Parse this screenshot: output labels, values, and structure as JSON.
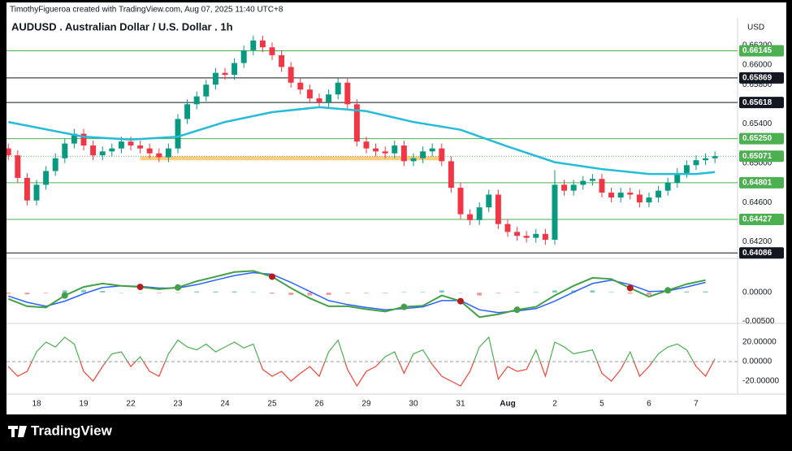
{
  "header": {
    "credit": "TimothyFigueroa created with TradingView.com, Aug 07, 2025 11:40 UTC+8",
    "title": "AUDUSD . Australian Dollar / U.S. Dollar . 1h",
    "currency": "USD"
  },
  "footer": {
    "logo": "TradingView"
  },
  "chart_data": [
    {
      "type": "candlestick",
      "x": [
        -3,
        -2,
        -1,
        0,
        1,
        2,
        3,
        4,
        5,
        6,
        7,
        8,
        9,
        10,
        11,
        12,
        13,
        14,
        15,
        16,
        17,
        18,
        19,
        20,
        21,
        22,
        23,
        24,
        25,
        26,
        27,
        28,
        29,
        30,
        31,
        32,
        33,
        34,
        35,
        36,
        37,
        38,
        39,
        40,
        41,
        42,
        43,
        44,
        45,
        46,
        47,
        48,
        49,
        50,
        51,
        52,
        53,
        54,
        55,
        56,
        57,
        58,
        59,
        60,
        61,
        62,
        63,
        64,
        65,
        66,
        67,
        68,
        69,
        70,
        71,
        72
      ],
      "open": [
        0.6515,
        0.6508,
        0.6485,
        0.6462,
        0.6478,
        0.6492,
        0.6505,
        0.652,
        0.653,
        0.6518,
        0.6508,
        0.6512,
        0.6515,
        0.6522,
        0.6518,
        0.6515,
        0.651,
        0.6506,
        0.6515,
        0.6545,
        0.656,
        0.6568,
        0.658,
        0.6592,
        0.659,
        0.6602,
        0.6615,
        0.6625,
        0.6618,
        0.661,
        0.6598,
        0.6582,
        0.6575,
        0.6566,
        0.6562,
        0.657,
        0.6582,
        0.656,
        0.6522,
        0.6515,
        0.6512,
        0.651,
        0.6518,
        0.6502,
        0.6505,
        0.6512,
        0.6515,
        0.6502,
        0.6475,
        0.6448,
        0.6442,
        0.6455,
        0.6468,
        0.6438,
        0.643,
        0.6426,
        0.6424,
        0.6428,
        0.6422,
        0.6478,
        0.6472,
        0.6478,
        0.6482,
        0.6484,
        0.647,
        0.6465,
        0.647,
        0.6468,
        0.646,
        0.6465,
        0.6472,
        0.648,
        0.649,
        0.6498,
        0.6503,
        0.6505
      ],
      "high": [
        0.652,
        0.6513,
        0.649,
        0.6483,
        0.6497,
        0.651,
        0.6525,
        0.6535,
        0.6535,
        0.6523,
        0.6517,
        0.652,
        0.6527,
        0.6527,
        0.6523,
        0.652,
        0.6515,
        0.652,
        0.655,
        0.6565,
        0.6573,
        0.6585,
        0.6597,
        0.6597,
        0.6607,
        0.662,
        0.663,
        0.663,
        0.6623,
        0.6615,
        0.6603,
        0.6587,
        0.658,
        0.6571,
        0.6575,
        0.6587,
        0.6587,
        0.6565,
        0.6527,
        0.652,
        0.6517,
        0.6523,
        0.6523,
        0.651,
        0.6517,
        0.652,
        0.652,
        0.6507,
        0.648,
        0.6453,
        0.646,
        0.6473,
        0.6473,
        0.6443,
        0.6435,
        0.6431,
        0.6433,
        0.6433,
        0.6493,
        0.6483,
        0.6483,
        0.6487,
        0.6489,
        0.6489,
        0.6475,
        0.6475,
        0.6475,
        0.6473,
        0.647,
        0.6477,
        0.6485,
        0.6495,
        0.6503,
        0.6508,
        0.651,
        0.6512
      ],
      "low": [
        0.6503,
        0.648,
        0.6457,
        0.6457,
        0.6473,
        0.6487,
        0.65,
        0.6515,
        0.6513,
        0.6503,
        0.6503,
        0.6507,
        0.651,
        0.6513,
        0.651,
        0.6505,
        0.6501,
        0.6501,
        0.651,
        0.654,
        0.6555,
        0.6563,
        0.6575,
        0.6585,
        0.6585,
        0.6597,
        0.661,
        0.6613,
        0.6605,
        0.6593,
        0.6577,
        0.657,
        0.6561,
        0.6557,
        0.6557,
        0.6565,
        0.6555,
        0.6517,
        0.651,
        0.6507,
        0.6505,
        0.6505,
        0.6497,
        0.6497,
        0.65,
        0.6507,
        0.6497,
        0.647,
        0.6443,
        0.6437,
        0.6437,
        0.645,
        0.6433,
        0.6425,
        0.6421,
        0.6419,
        0.6419,
        0.6417,
        0.6417,
        0.6467,
        0.6467,
        0.6473,
        0.6477,
        0.6465,
        0.646,
        0.646,
        0.6463,
        0.6455,
        0.6455,
        0.646,
        0.6467,
        0.6475,
        0.6485,
        0.6493,
        0.6498,
        0.65
      ],
      "close": [
        0.6508,
        0.6485,
        0.6462,
        0.6478,
        0.6492,
        0.6505,
        0.652,
        0.653,
        0.6518,
        0.6508,
        0.6512,
        0.6515,
        0.6522,
        0.6518,
        0.6515,
        0.651,
        0.6506,
        0.6515,
        0.6545,
        0.656,
        0.6568,
        0.658,
        0.6592,
        0.659,
        0.6602,
        0.6615,
        0.6625,
        0.6618,
        0.661,
        0.6598,
        0.6582,
        0.6575,
        0.6566,
        0.6562,
        0.657,
        0.6582,
        0.656,
        0.6522,
        0.6515,
        0.6512,
        0.651,
        0.6518,
        0.6502,
        0.6505,
        0.6512,
        0.6515,
        0.6502,
        0.6475,
        0.6448,
        0.6442,
        0.6455,
        0.6468,
        0.6438,
        0.643,
        0.6426,
        0.6424,
        0.6428,
        0.6422,
        0.6478,
        0.6472,
        0.6478,
        0.6482,
        0.6484,
        0.647,
        0.6465,
        0.647,
        0.6468,
        0.646,
        0.6465,
        0.6472,
        0.648,
        0.649,
        0.6498,
        0.6503,
        0.6505,
        0.65071
      ],
      "up_color": "#089981",
      "down_color": "#f23645",
      "xlim": [
        -3.19,
        74.4
      ],
      "ylim": [
        0.6403,
        0.6648
      ],
      "xticks": [
        {
          "value": 0,
          "label": "18"
        },
        {
          "value": 5,
          "label": "19"
        },
        {
          "value": 10,
          "label": "22"
        },
        {
          "value": 15,
          "label": "23"
        },
        {
          "value": 20,
          "label": "24"
        },
        {
          "value": 25,
          "label": "25"
        },
        {
          "value": 30,
          "label": "26"
        },
        {
          "value": 35,
          "label": "29"
        },
        {
          "value": 40,
          "label": "30"
        },
        {
          "value": 45,
          "label": "31"
        },
        {
          "value": 50,
          "label": "Aug"
        },
        {
          "value": 55,
          "label": "2"
        },
        {
          "value": 60,
          "label": "5"
        },
        {
          "value": 65,
          "label": "6"
        },
        {
          "value": 70,
          "label": "7"
        }
      ],
      "yticks": [
        {
          "value": 0.662,
          "label": "0.66200"
        },
        {
          "value": 0.66,
          "label": "0.66000"
        },
        {
          "value": 0.658,
          "label": "0.65800"
        },
        {
          "value": 0.654,
          "label": "0.65400"
        },
        {
          "value": 0.65,
          "label": "0.65000"
        },
        {
          "value": 0.646,
          "label": "0.64600"
        },
        {
          "value": 0.642,
          "label": "0.64200"
        }
      ],
      "ma": {
        "x": [
          -3,
          5,
          10,
          15,
          20,
          25,
          30,
          35,
          40,
          45,
          50,
          55,
          60,
          65,
          70,
          72
        ],
        "values": [
          0.6542,
          0.6527,
          0.6524,
          0.6527,
          0.6542,
          0.6552,
          0.6557,
          0.6553,
          0.6542,
          0.6534,
          0.6517,
          0.6501,
          0.6494,
          0.6489,
          0.6489,
          0.6491
        ],
        "color": "#26bcd7"
      },
      "levels": [
        {
          "value": 0.66145,
          "label": "0.66145",
          "color": "#4caf50"
        },
        {
          "value": 0.65869,
          "label": "0.65869",
          "color": "#131722"
        },
        {
          "value": 0.65618,
          "label": "0.65618",
          "color": "#131722"
        },
        {
          "value": 0.6525,
          "label": "0.65250",
          "color": "#4caf50"
        },
        {
          "value": 0.65071,
          "label": "0.65071",
          "color": "#4caf50",
          "dashed": true
        },
        {
          "value": 0.64801,
          "label": "0.64801",
          "color": "#4caf50"
        },
        {
          "value": 0.64427,
          "label": "0.64427",
          "color": "#4caf50"
        },
        {
          "value": 0.64086,
          "label": "0.64086",
          "color": "#131722"
        }
      ],
      "zone": {
        "value": 0.6505,
        "x": [
          11,
          43
        ],
        "color": "#ffcc80"
      }
    },
    {
      "type": "macd",
      "x": [
        -3,
        -1,
        1,
        3,
        5,
        7,
        9,
        11,
        13,
        15,
        17,
        19,
        21,
        23,
        25,
        27,
        29,
        31,
        33,
        35,
        37,
        39,
        41,
        43,
        45,
        47,
        49,
        51,
        53,
        55,
        57,
        59,
        61,
        63,
        65,
        67,
        69,
        71
      ],
      "macd": [
        -0.0011,
        -0.0024,
        -0.0026,
        -0.0005,
        0.001,
        0.0016,
        0.0012,
        0.001,
        0.0006,
        0.0009,
        0.002,
        0.0028,
        0.0036,
        0.0038,
        0.0028,
        0.0008,
        -0.001,
        -0.0024,
        -0.0024,
        -0.0029,
        -0.0033,
        -0.0025,
        -0.0023,
        -0.0005,
        -0.0015,
        -0.0043,
        -0.0038,
        -0.003,
        -0.0025,
        -0.0005,
        0.0012,
        0.0026,
        0.0024,
        0.0008,
        -0.0007,
        0.0004,
        0.0015,
        0.0022
      ],
      "signal": [
        -0.0006,
        -0.0017,
        -0.0024,
        -0.0015,
        -0.0002,
        0.0009,
        0.0012,
        0.0011,
        0.0008,
        0.0008,
        0.0014,
        0.0022,
        0.003,
        0.0035,
        0.0032,
        0.0018,
        0.0002,
        -0.0014,
        -0.0021,
        -0.0026,
        -0.003,
        -0.0028,
        -0.0025,
        -0.0014,
        -0.0014,
        -0.003,
        -0.0035,
        -0.0032,
        -0.0028,
        -0.0015,
        0.0001,
        0.0016,
        0.0022,
        0.0014,
        0.0002,
        0.0003,
        0.001,
        0.0018
      ],
      "histogram": [
        -0.0002,
        -0.0003,
        -0.0001,
        0.0004,
        0.0005,
        0.0003,
        0,
        0,
        -0.0001,
        0,
        0.0002,
        0.0002,
        0.0002,
        0.0001,
        -0.0002,
        -0.0004,
        -0.0005,
        -0.0004,
        -0.0001,
        -0.0001,
        -0.0001,
        0.0001,
        0.0001,
        0.0004,
        0,
        -0.0005,
        -0.0001,
        0.0001,
        0.0001,
        0.0004,
        0.0004,
        0.0004,
        0.0001,
        -0.0002,
        -0.0004,
        0,
        0.0002,
        0.0002
      ],
      "macd_color": "#43a047",
      "signal_color": "#2962ff",
      "down_color": "#b71c1c",
      "hist_up_color": "#80cbc4",
      "hist_down_color": "#ef9a9a",
      "xlim": [
        -3.19,
        74.4
      ],
      "ylim": [
        -0.0054,
        0.006
      ],
      "yticks": [
        {
          "value": 0,
          "label": "0.00000"
        },
        {
          "value": -0.005,
          "label": "-0.00500"
        }
      ]
    },
    {
      "type": "oscillator",
      "x": [
        -3,
        -2,
        -1,
        0,
        1,
        2,
        3,
        4,
        5,
        6,
        7,
        8,
        9,
        10,
        11,
        12,
        13,
        14,
        15,
        16,
        17,
        18,
        19,
        20,
        21,
        22,
        23,
        24,
        25,
        26,
        27,
        28,
        29,
        30,
        31,
        32,
        33,
        34,
        35,
        36,
        37,
        38,
        39,
        40,
        41,
        42,
        43,
        44,
        45,
        46,
        47,
        48,
        49,
        50,
        51,
        52,
        53,
        54,
        55,
        56,
        57,
        58,
        59,
        60,
        61,
        62,
        63,
        64,
        65,
        66,
        67,
        68,
        69,
        70,
        71,
        72
      ],
      "values": [
        -5,
        -15,
        -10,
        10,
        20,
        15,
        25,
        18,
        -10,
        -20,
        -5,
        8,
        10,
        -5,
        5,
        -10,
        -15,
        8,
        22,
        15,
        12,
        18,
        10,
        15,
        20,
        14,
        18,
        -8,
        -15,
        -10,
        -20,
        -12,
        -5,
        -15,
        10,
        22,
        -8,
        -25,
        -10,
        -5,
        5,
        10,
        -12,
        8,
        12,
        -3,
        -15,
        -20,
        -25,
        -10,
        15,
        25,
        -18,
        -5,
        -10,
        -8,
        12,
        -15,
        20,
        15,
        8,
        10,
        12,
        -12,
        -20,
        -8,
        10,
        -15,
        -5,
        8,
        15,
        18,
        12,
        -5,
        -15,
        3
      ],
      "up_color": "#4caf50",
      "down_color": "#f44336",
      "xlim": [
        -3.19,
        74.4
      ],
      "ylim": [
        -33.3,
        39.2
      ],
      "yticks": [
        {
          "value": 20,
          "label": "20.00000"
        },
        {
          "value": 0,
          "label": "0.00000"
        },
        {
          "value": -20,
          "label": "-20.00000"
        }
      ]
    }
  ]
}
